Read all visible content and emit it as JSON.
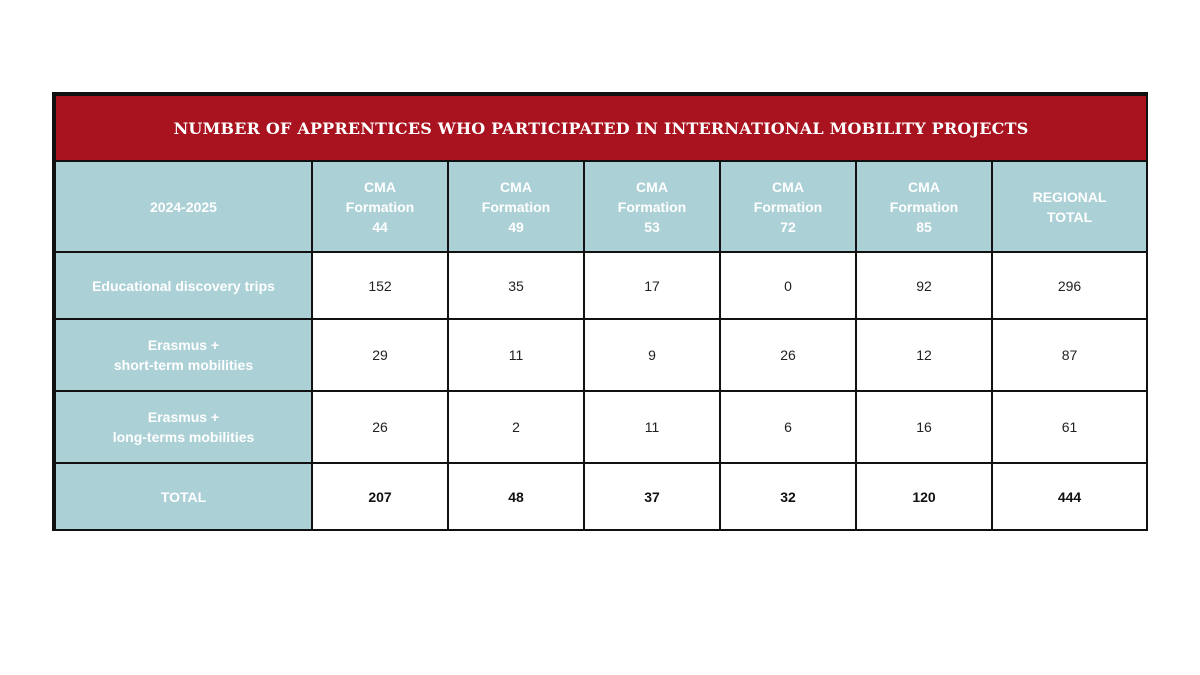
{
  "table": {
    "title": "NUMBER OF APPRENTICES WHO PARTICIPATED IN INTERNATIONAL MOBILITY PROJECTS",
    "corner_label": "2024-2025",
    "columns": [
      {
        "line1": "CMA",
        "line2": "Formation",
        "line3": "44"
      },
      {
        "line1": "CMA",
        "line2": "Formation",
        "line3": "49"
      },
      {
        "line1": "CMA",
        "line2": "Formation",
        "line3": "53"
      },
      {
        "line1": "CMA",
        "line2": "Formation",
        "line3": "72"
      },
      {
        "line1": "CMA",
        "line2": "Formation",
        "line3": "85"
      },
      {
        "line1": "REGIONAL",
        "line2": "TOTAL",
        "line3": ""
      }
    ],
    "rows": [
      {
        "label_line1": "Educational discovery trips",
        "label_line2": "",
        "values": [
          "152",
          "35",
          "17",
          "0",
          "92",
          "296"
        ]
      },
      {
        "label_line1": "Erasmus +",
        "label_line2": "short-term mobilities",
        "values": [
          "29",
          "11",
          "9",
          "26",
          "12",
          "87"
        ]
      },
      {
        "label_line1": "Erasmus +",
        "label_line2": "long-terms mobilities",
        "values": [
          "26",
          "2",
          "11",
          "6",
          "16",
          "61"
        ]
      }
    ],
    "total": {
      "label": "TOTAL",
      "values": [
        "207",
        "48",
        "37",
        "32",
        "120",
        "444"
      ]
    }
  },
  "colors": {
    "title_bg": "#a8131f",
    "header_bg": "#abd0d6",
    "border": "#111111",
    "cell_bg": "#ffffff"
  }
}
